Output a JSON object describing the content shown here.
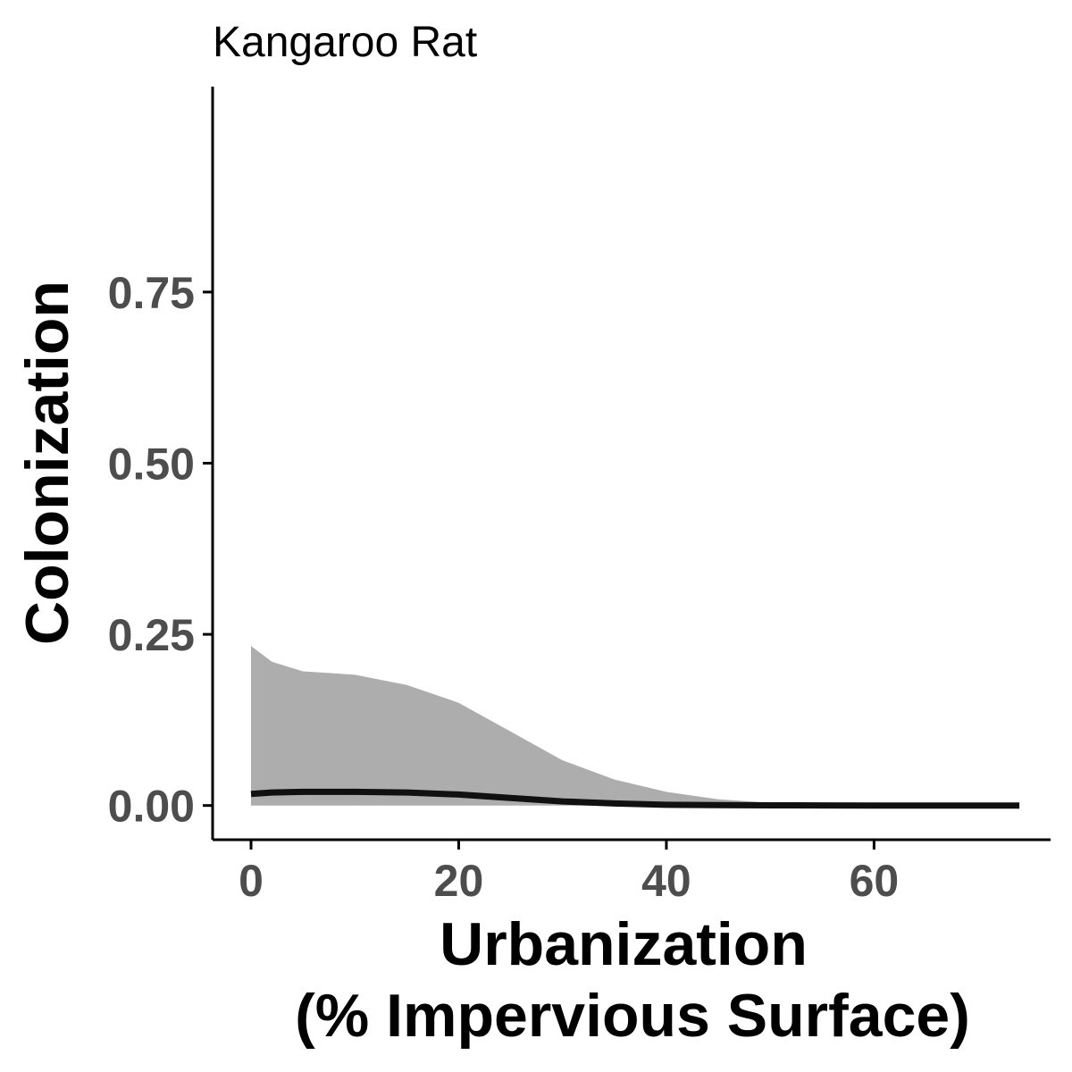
{
  "chart_data": {
    "type": "line",
    "title": "Kangaroo Rat",
    "xlabel_lines": [
      "Urbanization",
      "(% Impervious Surface)"
    ],
    "ylabel": "Colonization",
    "xlim": [
      -3.7,
      77
    ],
    "ylim": [
      -0.05,
      1.05
    ],
    "x_ticks": [
      0,
      20,
      40,
      60
    ],
    "x_tick_labels": [
      "0",
      "20",
      "40",
      "60"
    ],
    "y_ticks": [
      0,
      0.25,
      0.5,
      0.75
    ],
    "y_tick_labels": [
      "0.00",
      "0.25",
      "0.50",
      "0.75"
    ],
    "grid": false,
    "colors": {
      "line": "#111111",
      "ribbon": "#adadad"
    },
    "series": [
      {
        "x": [
          0,
          2,
          5,
          10,
          15,
          20,
          25,
          30,
          35,
          40,
          45,
          50,
          55,
          60,
          65,
          70,
          74
        ],
        "y": [
          0.017,
          0.019,
          0.02,
          0.02,
          0.019,
          0.016,
          0.011,
          0.006,
          0.003,
          0.001,
          0.0005,
          0.0002,
          0.0001,
          0.0,
          0.0,
          0.0,
          0.0
        ],
        "lower": [
          0,
          0,
          0,
          0,
          0,
          0,
          0,
          0,
          0,
          0,
          0,
          0,
          0,
          0,
          0,
          0,
          0
        ],
        "upper": [
          0.233,
          0.21,
          0.196,
          0.191,
          0.176,
          0.15,
          0.108,
          0.066,
          0.038,
          0.02,
          0.009,
          0.004,
          0.002,
          0.001,
          0.0005,
          0.0002,
          0.0001
        ]
      }
    ]
  }
}
